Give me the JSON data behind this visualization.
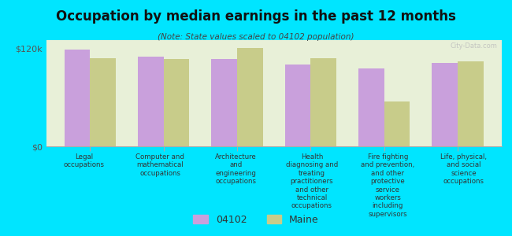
{
  "title": "Occupation by median earnings in the past 12 months",
  "subtitle": "(Note: State values scaled to 04102 population)",
  "categories": [
    "Legal\noccupations",
    "Computer and\nmathematical\noccupations",
    "Architecture\nand\nengineering\noccupations",
    "Health\ndiagnosing and\ntreating\npractitioners\nand other\ntechnical\noccupations",
    "Fire fighting\nand prevention,\nand other\nprotective\nservice\nworkers\nincluding\nsupervisors",
    "Life, physical,\nand social\nscience\noccupations"
  ],
  "values_04102": [
    118000,
    110000,
    107000,
    100000,
    95000,
    102000
  ],
  "values_maine": [
    108000,
    107000,
    120000,
    108000,
    55000,
    104000
  ],
  "color_04102": "#c9a0dc",
  "color_maine": "#c8cc8a",
  "background_color": "#00e5ff",
  "plot_bg_color": "#e8f0d8",
  "ylim": [
    0,
    130000
  ],
  "yticks": [
    0,
    120000
  ],
  "ytick_labels": [
    "$0",
    "$120k"
  ],
  "legend_label_04102": "04102",
  "legend_label_maine": "Maine",
  "watermark": "City-Data.com"
}
